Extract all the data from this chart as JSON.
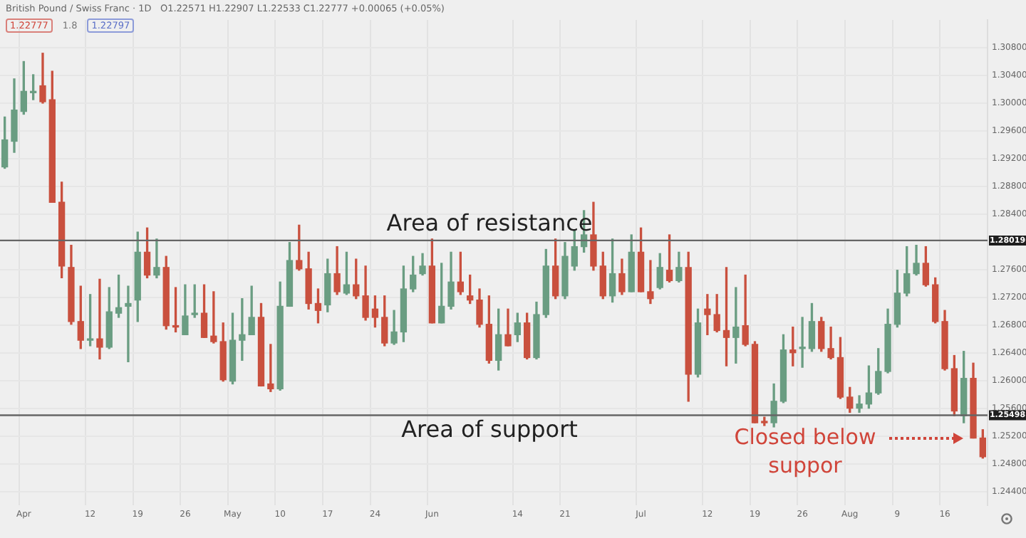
{
  "chart_data": {
    "type": "candlestick",
    "title": "British Pound / Swiss Franc · 1D",
    "subtitle": "O1.22571 H1.22907 L1.22533 C1.22777 +0.00065 (+0.05%)",
    "annotations": [
      "1.22777",
      "1.8",
      "1.22797",
      "Closed below suppor",
      "1.28019",
      "1.25498"
    ],
    "categories": [
      null,
      null,
      "Apr",
      null,
      null,
      null,
      null,
      null,
      null,
      "12",
      null,
      null,
      null,
      null,
      "19",
      null,
      null,
      null,
      null,
      "26",
      null,
      null,
      null,
      null,
      "May",
      null,
      null,
      null,
      null,
      "10",
      null,
      null,
      null,
      null,
      "17",
      null,
      null,
      null,
      null,
      "24",
      null,
      null,
      null,
      null,
      null,
      "Jun",
      null,
      null,
      null,
      null,
      null,
      null,
      null,
      null,
      "14",
      null,
      null,
      null,
      null,
      "21",
      null,
      null,
      null,
      null,
      null,
      null,
      null,
      "Jul",
      null,
      null,
      null,
      null,
      null,
      null,
      "12",
      null,
      null,
      null,
      null,
      "19",
      null,
      null,
      null,
      null,
      "26",
      null,
      null,
      null,
      null,
      "Aug",
      null,
      null,
      null,
      null,
      "9",
      null,
      null,
      null,
      null,
      "16",
      null,
      null,
      null,
      null
    ],
    "ohlc": [
      [
        1.2908,
        1.298,
        1.2906,
        1.2947
      ],
      [
        1.2945,
        1.3035,
        1.2929,
        1.299
      ],
      [
        1.2988,
        1.306,
        1.2984,
        1.3017
      ],
      [
        1.3015,
        1.3041,
        1.3005,
        1.3017
      ],
      [
        1.3025,
        1.3072,
        1.3,
        1.3002
      ],
      [
        1.3005,
        1.3046,
        1.2857,
        1.2857
      ],
      [
        1.2857,
        1.2886,
        1.2748,
        1.2765
      ],
      [
        1.2763,
        1.2795,
        1.2681,
        1.2685
      ],
      [
        1.2685,
        1.2736,
        1.2646,
        1.2658
      ],
      [
        1.2658,
        1.2724,
        1.265,
        1.266
      ],
      [
        1.266,
        1.2746,
        1.2631,
        1.2648
      ],
      [
        1.2648,
        1.2734,
        1.2646,
        1.2699
      ],
      [
        1.2697,
        1.2752,
        1.2691,
        1.2705
      ],
      [
        1.2707,
        1.2736,
        1.2627,
        1.2711
      ],
      [
        1.2716,
        1.2814,
        1.2685,
        1.2785
      ],
      [
        1.2785,
        1.282,
        1.2748,
        1.2752
      ],
      [
        1.2752,
        1.2804,
        1.2748,
        1.2763
      ],
      [
        1.2763,
        1.2779,
        1.2674,
        1.2679
      ],
      [
        1.2679,
        1.2734,
        1.267,
        1.2677
      ],
      [
        1.2666,
        1.2738,
        1.2666,
        1.2693
      ],
      [
        1.2695,
        1.2738,
        1.2691,
        1.2697
      ],
      [
        1.2697,
        1.2738,
        1.2662,
        1.2662
      ],
      [
        1.2664,
        1.2728,
        1.2654,
        1.2656
      ],
      [
        1.2656,
        1.2683,
        1.2599,
        1.2601
      ],
      [
        1.2599,
        1.2697,
        1.2595,
        1.2658
      ],
      [
        1.2658,
        1.2718,
        1.2629,
        1.2666
      ],
      [
        1.2666,
        1.2736,
        1.2666,
        1.2691
      ],
      [
        1.2691,
        1.2711,
        1.2592,
        1.2592
      ],
      [
        1.2595,
        1.2652,
        1.2584,
        1.2588
      ],
      [
        1.2588,
        1.2742,
        1.2586,
        1.2707
      ],
      [
        1.2707,
        1.2799,
        1.2707,
        1.2773
      ],
      [
        1.2773,
        1.2824,
        1.2759,
        1.2761
      ],
      [
        1.2761,
        1.2785,
        1.2703,
        1.2711
      ],
      [
        1.2711,
        1.2732,
        1.2683,
        1.2701
      ],
      [
        1.2709,
        1.2775,
        1.2699,
        1.2754
      ],
      [
        1.2754,
        1.2793,
        1.2724,
        1.2728
      ],
      [
        1.2726,
        1.2785,
        1.2724,
        1.2738
      ],
      [
        1.2738,
        1.2775,
        1.2718,
        1.2722
      ],
      [
        1.2722,
        1.2765,
        1.2687,
        1.2691
      ],
      [
        1.2703,
        1.2722,
        1.2677,
        1.2691
      ],
      [
        1.2691,
        1.2722,
        1.265,
        1.2654
      ],
      [
        1.2654,
        1.2701,
        1.2652,
        1.267
      ],
      [
        1.267,
        1.2765,
        1.2656,
        1.2732
      ],
      [
        1.2732,
        1.2779,
        1.2728,
        1.2752
      ],
      [
        1.2754,
        1.2783,
        1.2752,
        1.2765
      ],
      [
        1.2765,
        1.2804,
        1.2683,
        1.2683
      ],
      [
        1.2683,
        1.2769,
        1.2683,
        1.2707
      ],
      [
        1.2707,
        1.2785,
        1.2703,
        1.2742
      ],
      [
        1.2742,
        1.2785,
        1.2724,
        1.2728
      ],
      [
        1.2722,
        1.2752,
        1.2711,
        1.2716
      ],
      [
        1.2716,
        1.2732,
        1.2677,
        1.2681
      ],
      [
        1.2681,
        1.2722,
        1.2625,
        1.2629
      ],
      [
        1.2629,
        1.2703,
        1.2615,
        1.2666
      ],
      [
        1.2666,
        1.2703,
        1.265,
        1.265
      ],
      [
        1.2666,
        1.2697,
        1.2656,
        1.2683
      ],
      [
        1.2683,
        1.2697,
        1.2631,
        1.2633
      ],
      [
        1.2633,
        1.2713,
        1.2631,
        1.2695
      ],
      [
        1.2695,
        1.2789,
        1.2691,
        1.2765
      ],
      [
        1.2765,
        1.2804,
        1.2718,
        1.2722
      ],
      [
        1.2722,
        1.2799,
        1.2718,
        1.2779
      ],
      [
        1.2765,
        1.2816,
        1.2759,
        1.2793
      ],
      [
        1.2793,
        1.2845,
        1.2785,
        1.281
      ],
      [
        1.281,
        1.2857,
        1.2759,
        1.2765
      ],
      [
        1.2765,
        1.2785,
        1.2718,
        1.2722
      ],
      [
        1.2722,
        1.2804,
        1.2713,
        1.2754
      ],
      [
        1.2754,
        1.2775,
        1.2724,
        1.2728
      ],
      [
        1.2728,
        1.281,
        1.2728,
        1.2785
      ],
      [
        1.2785,
        1.282,
        1.2728,
        1.2728
      ],
      [
        1.2728,
        1.2773,
        1.2711,
        1.2718
      ],
      [
        1.2734,
        1.2783,
        1.2732,
        1.2763
      ],
      [
        1.2759,
        1.281,
        1.2742,
        1.2744
      ],
      [
        1.2744,
        1.2785,
        1.2742,
        1.2763
      ],
      [
        1.2763,
        1.2785,
        1.257,
        1.2609
      ],
      [
        1.2609,
        1.2703,
        1.2605,
        1.2683
      ],
      [
        1.2703,
        1.2724,
        1.2666,
        1.2695
      ],
      [
        1.2695,
        1.2724,
        1.267,
        1.2672
      ],
      [
        1.2672,
        1.2763,
        1.2621,
        1.2662
      ],
      [
        1.2662,
        1.2734,
        1.2625,
        1.2677
      ],
      [
        1.2679,
        1.2752,
        1.265,
        1.2652
      ],
      [
        1.2652,
        1.2656,
        1.2539,
        1.2539
      ],
      [
        1.2541,
        1.2547,
        1.2535,
        1.2539
      ],
      [
        1.2539,
        1.2595,
        1.2533,
        1.257
      ],
      [
        1.257,
        1.2666,
        1.2568,
        1.2644
      ],
      [
        1.2644,
        1.2677,
        1.2621,
        1.264
      ],
      [
        1.2646,
        1.2691,
        1.2619,
        1.2648
      ],
      [
        1.2646,
        1.2711,
        1.2642,
        1.2685
      ],
      [
        1.2685,
        1.2691,
        1.2642,
        1.2646
      ],
      [
        1.2646,
        1.2677,
        1.2631,
        1.2633
      ],
      [
        1.2633,
        1.2662,
        1.2574,
        1.2576
      ],
      [
        1.2576,
        1.259,
        1.2554,
        1.256
      ],
      [
        1.256,
        1.2578,
        1.2554,
        1.2566
      ],
      [
        1.2566,
        1.2621,
        1.256,
        1.2582
      ],
      [
        1.2582,
        1.2646,
        1.258,
        1.2613
      ],
      [
        1.2613,
        1.2703,
        1.2611,
        1.2681
      ],
      [
        1.2681,
        1.2759,
        1.2677,
        1.2726
      ],
      [
        1.2726,
        1.2793,
        1.2722,
        1.2754
      ],
      [
        1.2754,
        1.2795,
        1.2752,
        1.2769
      ],
      [
        1.2769,
        1.2793,
        1.2736,
        1.2738
      ],
      [
        1.2738,
        1.2748,
        1.2683,
        1.2685
      ],
      [
        1.2685,
        1.2701,
        1.2615,
        1.2617
      ],
      [
        1.2617,
        1.2636,
        1.2549,
        1.2556
      ],
      [
        1.2549,
        1.2642,
        1.2539,
        1.2603
      ],
      [
        1.2603,
        1.2625,
        1.2517,
        1.2517
      ],
      [
        1.2517,
        1.2529,
        1.2488,
        1.249
      ]
    ],
    "colors": [
      "#6a9d82",
      "#6a9d82",
      "#6a9d82",
      "#6a9d82",
      "#c9503e",
      "#c9503e",
      "#c9503e",
      "#c9503e",
      "#c9503e",
      "#6a9d82",
      "#c9503e",
      "#6a9d82",
      "#6a9d82",
      "#6a9d82",
      "#6a9d82",
      "#c9503e",
      "#6a9d82",
      "#c9503e",
      "#c9503e",
      "#6a9d82",
      "#6a9d82",
      "#c9503e",
      "#c9503e",
      "#c9503e",
      "#6a9d82",
      "#6a9d82",
      "#6a9d82",
      "#c9503e",
      "#c9503e",
      "#6a9d82",
      "#6a9d82",
      "#c9503e",
      "#c9503e",
      "#c9503e",
      "#6a9d82",
      "#c9503e",
      "#6a9d82",
      "#c9503e",
      "#c9503e",
      "#c9503e",
      "#c9503e",
      "#6a9d82",
      "#6a9d82",
      "#6a9d82",
      "#6a9d82",
      "#c9503e",
      "#6a9d82",
      "#6a9d82",
      "#c9503e",
      "#c9503e",
      "#c9503e",
      "#c9503e",
      "#6a9d82",
      "#c9503e",
      "#6a9d82",
      "#c9503e",
      "#6a9d82",
      "#6a9d82",
      "#c9503e",
      "#6a9d82",
      "#6a9d82",
      "#6a9d82",
      "#c9503e",
      "#c9503e",
      "#6a9d82",
      "#c9503e",
      "#6a9d82",
      "#c9503e",
      "#c9503e",
      "#6a9d82",
      "#c9503e",
      "#6a9d82",
      "#c9503e",
      "#6a9d82",
      "#c9503e",
      "#c9503e",
      "#c9503e",
      "#6a9d82",
      "#c9503e",
      "#c9503e",
      "#c9503e",
      "#6a9d82",
      "#6a9d82",
      "#c9503e",
      "#6a9d82",
      "#6a9d82",
      "#c9503e",
      "#c9503e",
      "#c9503e",
      "#c9503e",
      "#6a9d82",
      "#6a9d82",
      "#6a9d82",
      "#6a9d82",
      "#6a9d82",
      "#6a9d82",
      "#6a9d82",
      "#c9503e",
      "#c9503e",
      "#c9503e",
      "#c9503e",
      "#6a9d82",
      "#c9503e",
      "#c9503e"
    ],
    "ylim": [
      1.242,
      1.312
    ],
    "yticks": [
      {
        "value": 1.244,
        "label": "1.24400"
      },
      {
        "value": 1.248,
        "label": "1.24800"
      },
      {
        "value": 1.252,
        "label": "1.25200"
      },
      {
        "value": 1.256,
        "label": "1.25600"
      },
      {
        "value": 1.26,
        "label": "1.26000"
      },
      {
        "value": 1.264,
        "label": "1.26400"
      },
      {
        "value": 1.268,
        "label": "1.26800"
      },
      {
        "value": 1.272,
        "label": "1.27200"
      },
      {
        "value": 1.276,
        "label": "1.27600"
      },
      {
        "value": 1.28,
        "label": null
      },
      {
        "value": 1.284,
        "label": "1.28400"
      },
      {
        "value": 1.288,
        "label": "1.28800"
      },
      {
        "value": 1.292,
        "label": "1.29200"
      },
      {
        "value": 1.296,
        "label": "1.29600"
      },
      {
        "value": 1.3,
        "label": "1.30000"
      },
      {
        "value": 1.304,
        "label": "1.30400"
      },
      {
        "value": 1.308,
        "label": "1.30800"
      }
    ],
    "ref_lines": [
      {
        "axis": "y",
        "value": 1.28019,
        "label": "Area of resistance",
        "color": "#666666"
      },
      {
        "axis": "y",
        "value": 1.25498,
        "label": "Area of support",
        "color": "#666666"
      }
    ],
    "grid": true,
    "legend": false
  }
}
